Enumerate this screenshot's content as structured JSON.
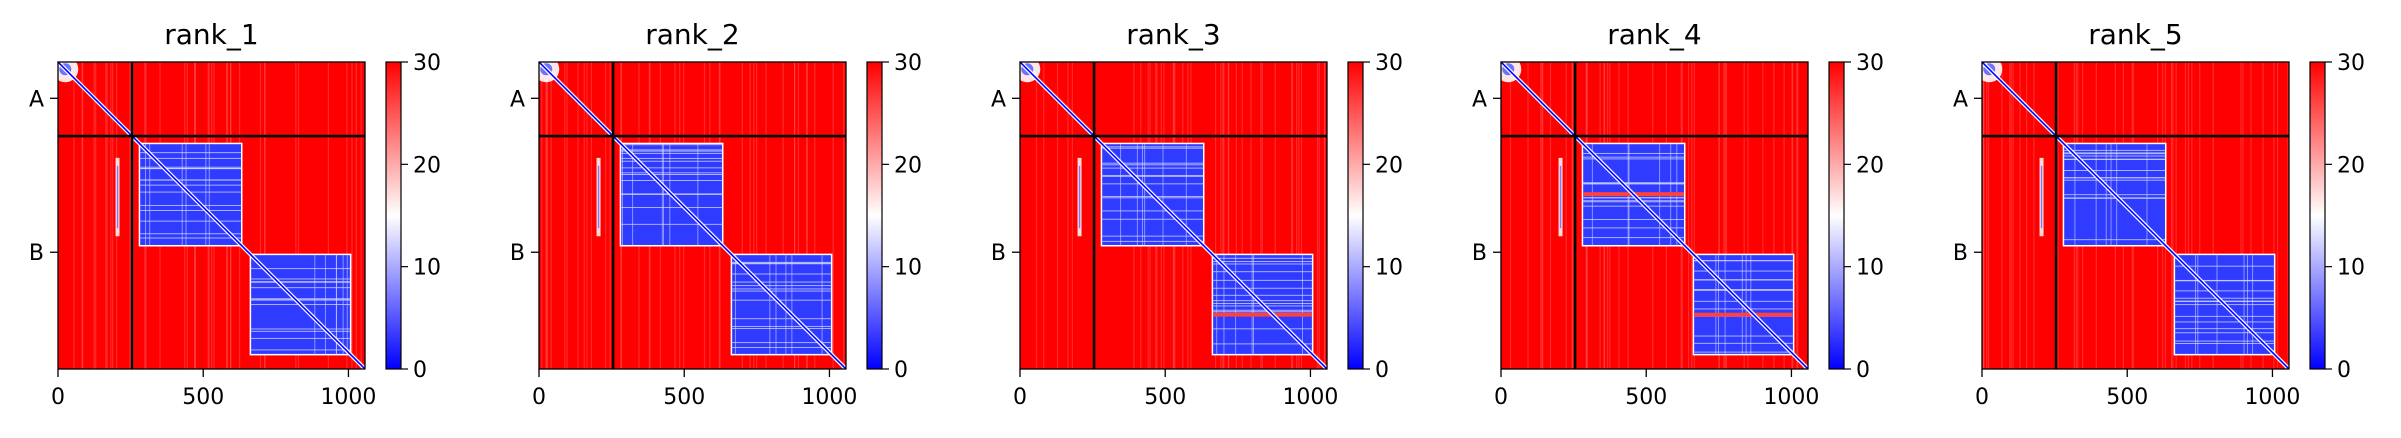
{
  "chart_data": [
    {
      "type": "heatmap",
      "title": "rank_1",
      "xlim": [
        0,
        1057
      ],
      "ylim": [
        0,
        1057
      ],
      "x_ticks": [
        0,
        500,
        1000
      ],
      "y_tick_labels": [
        {
          "label": "A",
          "pos": 125
        },
        {
          "label": "B",
          "pos": 655
        }
      ],
      "chain_boundary": 255,
      "colorbar": {
        "min": 0,
        "max": 30,
        "ticks": [
          0,
          10,
          20,
          30
        ],
        "colors": [
          "#0000ff",
          "#ffffff",
          "#ff0000"
        ]
      },
      "low_blocks": [
        [
          283,
          630
        ],
        [
          665,
          1005
        ]
      ],
      "stripes": []
    },
    {
      "type": "heatmap",
      "title": "rank_2",
      "xlim": [
        0,
        1057
      ],
      "ylim": [
        0,
        1057
      ],
      "x_ticks": [
        0,
        500,
        1000
      ],
      "y_tick_labels": [
        {
          "label": "A",
          "pos": 125
        },
        {
          "label": "B",
          "pos": 655
        }
      ],
      "chain_boundary": 255,
      "colorbar": {
        "min": 0,
        "max": 30,
        "ticks": [
          0,
          10,
          20,
          30
        ],
        "colors": [
          "#0000ff",
          "#ffffff",
          "#ff0000"
        ]
      },
      "low_blocks": [
        [
          283,
          630
        ],
        [
          665,
          1005
        ]
      ],
      "stripes": []
    },
    {
      "type": "heatmap",
      "title": "rank_3",
      "xlim": [
        0,
        1057
      ],
      "ylim": [
        0,
        1057
      ],
      "x_ticks": [
        0,
        500,
        1000
      ],
      "y_tick_labels": [
        {
          "label": "A",
          "pos": 125
        },
        {
          "label": "B",
          "pos": 655
        }
      ],
      "chain_boundary": 255,
      "colorbar": {
        "min": 0,
        "max": 30,
        "ticks": [
          0,
          10,
          20,
          30
        ],
        "colors": [
          "#0000ff",
          "#ffffff",
          "#ff0000"
        ]
      },
      "low_blocks": [
        [
          283,
          630
        ],
        [
          665,
          1005
        ]
      ],
      "stripes": [
        870
      ]
    },
    {
      "type": "heatmap",
      "title": "rank_4",
      "xlim": [
        0,
        1057
      ],
      "ylim": [
        0,
        1057
      ],
      "x_ticks": [
        0,
        500,
        1000
      ],
      "y_tick_labels": [
        {
          "label": "A",
          "pos": 125
        },
        {
          "label": "B",
          "pos": 655
        }
      ],
      "chain_boundary": 255,
      "colorbar": {
        "min": 0,
        "max": 30,
        "ticks": [
          0,
          10,
          20,
          30
        ],
        "colors": [
          "#0000ff",
          "#ffffff",
          "#ff0000"
        ]
      },
      "low_blocks": [
        [
          283,
          630
        ],
        [
          665,
          1005
        ]
      ],
      "stripes": [
        455,
        870
      ]
    },
    {
      "type": "heatmap",
      "title": "rank_5",
      "xlim": [
        0,
        1057
      ],
      "ylim": [
        0,
        1057
      ],
      "x_ticks": [
        0,
        500,
        1000
      ],
      "y_tick_labels": [
        {
          "label": "A",
          "pos": 125
        },
        {
          "label": "B",
          "pos": 655
        }
      ],
      "chain_boundary": 255,
      "colorbar": {
        "min": 0,
        "max": 30,
        "ticks": [
          0,
          10,
          20,
          30
        ],
        "colors": [
          "#0000ff",
          "#ffffff",
          "#ff0000"
        ]
      },
      "low_blocks": [
        [
          283,
          630
        ],
        [
          665,
          1005
        ]
      ],
      "stripes": []
    }
  ]
}
